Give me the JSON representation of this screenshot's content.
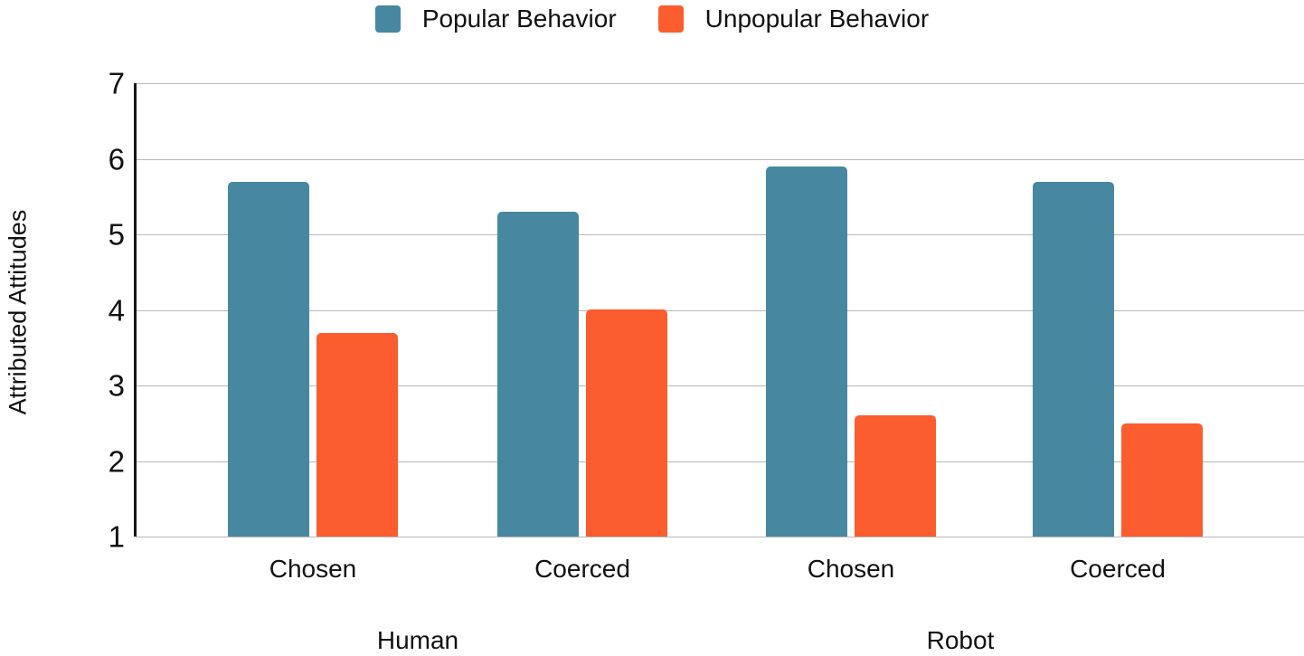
{
  "chart_data": {
    "type": "bar",
    "title": "",
    "ylabel": "Attributed Attitudes",
    "xlabel": "",
    "ylim": [
      1,
      7
    ],
    "yticks": [
      1,
      2,
      3,
      4,
      5,
      6,
      7
    ],
    "grid": true,
    "legend_position": "top",
    "group_labels": [
      "Human",
      "Robot"
    ],
    "categories": [
      {
        "label": "Chosen",
        "group": "Human"
      },
      {
        "label": "Coerced",
        "group": "Human"
      },
      {
        "label": "Chosen",
        "group": "Robot"
      },
      {
        "label": "Coerced",
        "group": "Robot"
      }
    ],
    "series": [
      {
        "name": "Popular Behavior",
        "color": "#4887A0",
        "values": [
          5.7,
          5.3,
          5.9,
          5.7
        ]
      },
      {
        "name": "Unpopular Behavior",
        "color": "#FB5D2E",
        "values": [
          3.7,
          4.0,
          2.6,
          2.5
        ]
      }
    ]
  },
  "colors": {
    "gridline": "#b8b8b8",
    "axis": "#161616",
    "text": "#111111"
  }
}
